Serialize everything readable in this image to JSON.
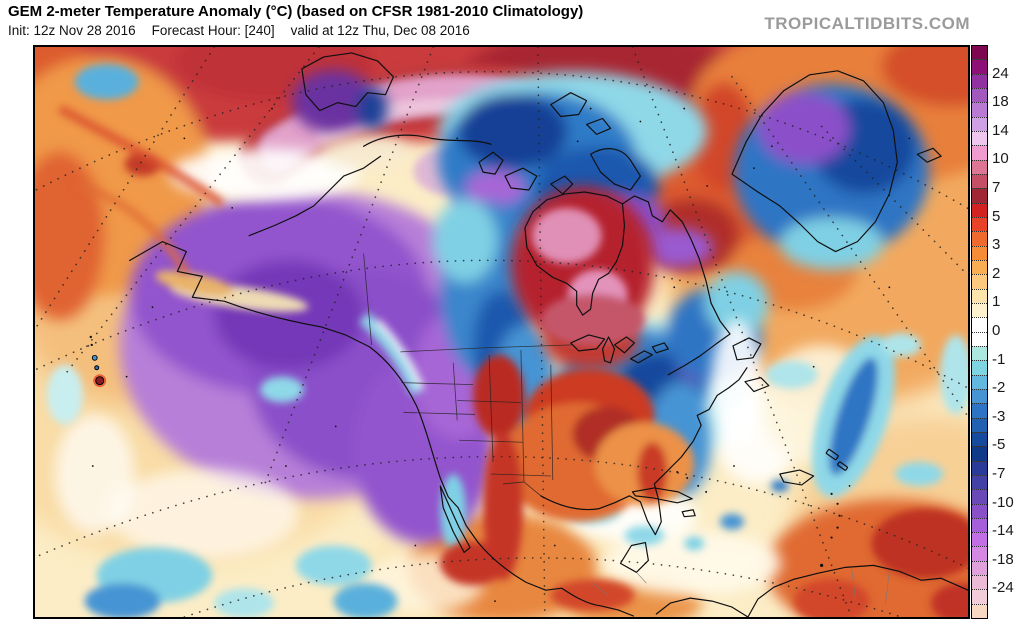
{
  "header": {
    "title": "GEM 2-meter Temperature Anomaly (°C) (based on CFSR 1981-2010 Climatology)",
    "init": "Init: 12z Nov 28 2016",
    "forecast_hour": "Forecast Hour: [240]",
    "valid": "valid at 12z Thu, Dec 08 2016",
    "brand": "TROPICALTIDBITS.COM",
    "brand_color": "#9b9b9b"
  },
  "colorbar": {
    "labels": [
      "24",
      "18",
      "14",
      "10",
      "7",
      "5",
      "3",
      "2",
      "1",
      "0",
      "-1",
      "-2",
      "-3",
      "-5",
      "-7",
      "-10",
      "-14",
      "-18",
      "-24"
    ],
    "cells_per_label_interval": 2,
    "cell_colors_top_to_bottom": [
      "#7e0650",
      "#8c1076",
      "#9232a2",
      "#a258bc",
      "#b87ad2",
      "#d0a0e4",
      "#eec6ee",
      "#f09cd0",
      "#dd7695",
      "#c64f68",
      "#a02834",
      "#d22222",
      "#e84228",
      "#ef6a2e",
      "#f48d36",
      "#f9ae54",
      "#fcc97e",
      "#fde3ac",
      "#fdf2cd",
      "#ffffff",
      "#ffffff",
      "#ace8e0",
      "#7fd4e2",
      "#62b8de",
      "#4694d4",
      "#2e74c4",
      "#2061b2",
      "#164a9c",
      "#0f3a8a",
      "#2a3a98",
      "#4340a6",
      "#6a4ab6",
      "#8a50c8",
      "#a75eda",
      "#c26ee4",
      "#d488e4",
      "#e0a0dc",
      "#ecbad6",
      "#f2ccd8",
      "#f8d9c4"
    ]
  }
}
